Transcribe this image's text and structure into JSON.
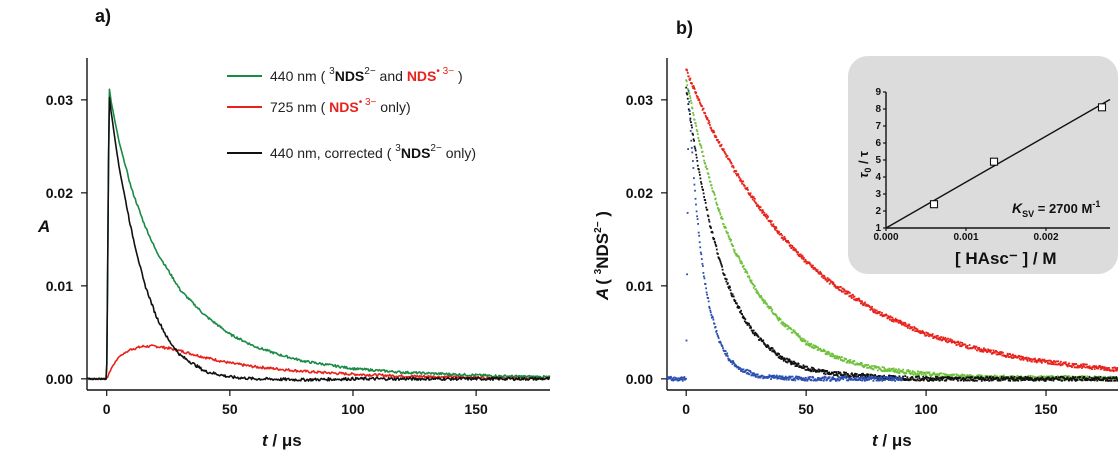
{
  "panel_a_label": "a)",
  "panel_b_label": "b)",
  "colors": {
    "green": "#1a8a44",
    "red": "#e8221b",
    "black": "#111111",
    "lightgreen": "#6fc13c",
    "blue": "#2a4fb0"
  },
  "legend": [
    {
      "prefix": "440 nm ( ",
      "sup1": "3",
      "b1": "NDS",
      "sup1b": "2−",
      "mid": " and ",
      "b2": "NDS",
      "sup2b": "• 3−",
      "suffix": " )"
    },
    {
      "prefix": "725 nm ( ",
      "b2": "NDS",
      "sup2b": "• 3−",
      "suffix": "  only)"
    },
    {
      "prefix": "440 nm, corrected ( ",
      "sup1": "3",
      "b1": "NDS",
      "sup1b": "2−",
      "suffix": " only)"
    }
  ],
  "axes": {
    "a_ylabel": "A",
    "b_ylabel_main": "A",
    "b_ylabel_paren_open": "( ",
    "b_ylabel_sup": "3",
    "b_ylabel_species": "NDS",
    "b_ylabel_charge": "2−",
    "b_ylabel_paren_close": " )",
    "xlabel_t": "t",
    "xlabel_unit": " / μs"
  },
  "inset": {
    "ylabel_tau0": "τ",
    "ylabel_sub": "0",
    "ylabel_rest": " / τ",
    "xlabel": "[ HAsc⁻ ] / M",
    "ksv_k": "K",
    "ksv_sub": "SV",
    "ksv_value": " = 2700 M",
    "ksv_exp": "-1"
  },
  "chart_data": [
    {
      "panel": "a",
      "type": "line",
      "xlabel": "t / μs",
      "ylabel": "A",
      "xlim": [
        -8,
        180
      ],
      "ylim": [
        -0.0012,
        0.0345
      ],
      "x_ticks": [
        0,
        50,
        100,
        150
      ],
      "y_ticks": [
        0.0,
        0.01,
        0.02,
        0.03
      ],
      "x_tick_labels": [
        "0",
        "50",
        "100",
        "150"
      ],
      "y_tick_labels": [
        "0.00",
        "0.01",
        "0.02",
        "0.03"
      ],
      "legend_position": "top-right",
      "series": [
        {
          "name": "440 nm ( 3NDS2− and NDS• 3− )",
          "color": "#1a8a44",
          "x": [
            -8,
            0,
            1,
            2,
            5,
            10,
            15,
            20,
            30,
            40,
            50,
            60,
            70,
            80,
            100,
            120,
            140,
            160,
            180
          ],
          "y": [
            0.0,
            0.0,
            0.0313,
            0.0295,
            0.0255,
            0.0205,
            0.0168,
            0.0138,
            0.0095,
            0.0068,
            0.0048,
            0.0035,
            0.0026,
            0.0019,
            0.0011,
            0.0007,
            0.0005,
            0.0003,
            0.0002
          ]
        },
        {
          "name": "725 nm ( NDS• 3− only)",
          "color": "#e8221b",
          "x": [
            -8,
            0,
            2,
            5,
            10,
            15,
            20,
            25,
            30,
            40,
            50,
            60,
            80,
            100,
            120,
            140,
            160,
            180
          ],
          "y": [
            0.0,
            0.0,
            0.0012,
            0.0024,
            0.0032,
            0.0035,
            0.0035,
            0.0033,
            0.003,
            0.0023,
            0.0017,
            0.0013,
            0.0008,
            0.0005,
            0.0003,
            0.0002,
            0.0001,
            0.0001
          ]
        },
        {
          "name": "440 nm, corrected ( 3NDS2− only)",
          "color": "#111111",
          "x": [
            -8,
            0,
            1,
            2,
            5,
            10,
            15,
            20,
            25,
            30,
            40,
            50,
            60,
            80,
            100,
            140,
            180
          ],
          "y": [
            0.0,
            0.0,
            0.0305,
            0.0283,
            0.0228,
            0.016,
            0.0105,
            0.0068,
            0.0042,
            0.0025,
            0.0008,
            0.0002,
            0.0,
            -0.0001,
            0.0,
            0.0,
            0.0
          ]
        }
      ]
    },
    {
      "panel": "b",
      "type": "scatter",
      "xlabel": "t / μs",
      "ylabel": "A ( 3NDS2− )",
      "xlim": [
        -8,
        180
      ],
      "ylim": [
        -0.0012,
        0.0345
      ],
      "x_ticks": [
        0,
        50,
        100,
        150
      ],
      "y_ticks": [
        0.0,
        0.01,
        0.02,
        0.03
      ],
      "x_tick_labels": [
        "0",
        "50",
        "100",
        "150"
      ],
      "y_tick_labels": [
        "0.00",
        "0.01",
        "0.02",
        "0.03"
      ],
      "series": [
        {
          "color": "#e8221b",
          "x": [
            0,
            10,
            20,
            30,
            40,
            50,
            60,
            80,
            100,
            120,
            140,
            160,
            180
          ],
          "y": [
            0.0332,
            0.0272,
            0.0225,
            0.0186,
            0.0153,
            0.0126,
            0.0104,
            0.0071,
            0.0048,
            0.0033,
            0.0022,
            0.0015,
            0.001
          ]
        },
        {
          "color": "#6fc13c",
          "x": [
            0,
            5,
            10,
            15,
            20,
            30,
            40,
            50,
            60,
            70,
            80,
            100,
            120,
            140,
            160,
            180
          ],
          "y": [
            0.0322,
            0.026,
            0.0212,
            0.0171,
            0.0139,
            0.0091,
            0.006,
            0.0039,
            0.0026,
            0.0017,
            0.0011,
            0.0005,
            0.0002,
            0.0001,
            0.0001,
            0.0
          ]
        },
        {
          "color": "#111111",
          "x": [
            0,
            2,
            5,
            10,
            15,
            20,
            25,
            30,
            40,
            50,
            60,
            80,
            100,
            140,
            180
          ],
          "y": [
            0.0312,
            0.0275,
            0.0228,
            0.0165,
            0.0118,
            0.0085,
            0.0061,
            0.0044,
            0.0022,
            0.0011,
            0.0006,
            0.0002,
            0.0,
            0.0,
            0.0
          ]
        },
        {
          "color": "#2a4fb0",
          "x": [
            -8,
            0,
            1,
            2,
            4,
            6,
            8,
            10,
            14,
            18,
            22,
            30,
            40,
            50,
            60,
            70,
            90
          ],
          "y": [
            0.0,
            0.0,
            0.031,
            0.0262,
            0.019,
            0.0138,
            0.0101,
            0.0074,
            0.0039,
            0.0021,
            0.0011,
            0.0003,
            0.0001,
            0.0,
            0.0,
            0.0,
            0.0
          ]
        }
      ]
    },
    {
      "panel": "b-inset",
      "type": "scatter",
      "xlabel": "[ HAsc⁻ ] / M",
      "ylabel": "τ0 / τ",
      "xlim": [
        0.0,
        0.0028
      ],
      "ylim": [
        1,
        9
      ],
      "x_ticks": [
        0.0,
        0.001,
        0.002
      ],
      "y_ticks": [
        1,
        2,
        3,
        4,
        5,
        6,
        7,
        8,
        9
      ],
      "x_tick_labels": [
        "0.000",
        "0.001",
        "0.002"
      ],
      "y_tick_labels": [
        "1",
        "2",
        "3",
        "4",
        "5",
        "6",
        "7",
        "8",
        "9"
      ],
      "annotation": "KSV = 2700 M-1",
      "points": {
        "x": [
          0.0006,
          0.00135,
          0.0027
        ],
        "y": [
          2.4,
          4.9,
          8.1
        ]
      },
      "fit_line": {
        "x": [
          0.0,
          0.0028
        ],
        "y": [
          1.0,
          8.56
        ]
      }
    }
  ]
}
